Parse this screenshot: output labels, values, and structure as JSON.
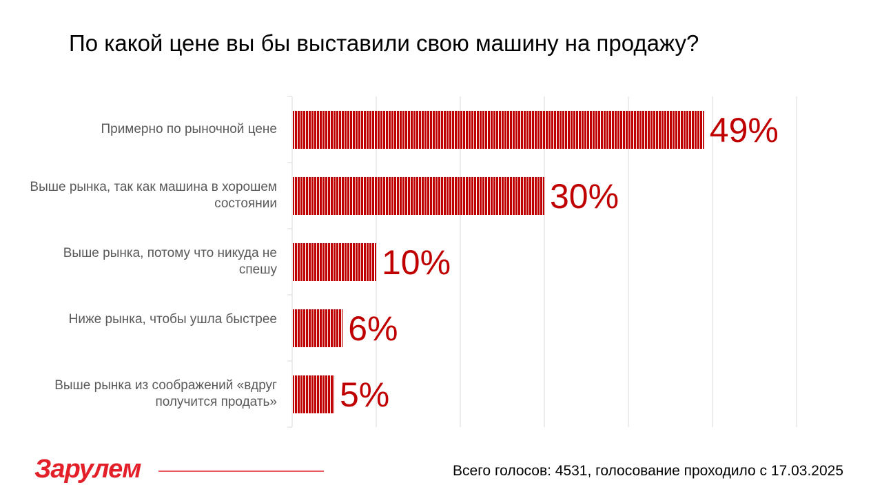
{
  "chart_data": {
    "type": "bar",
    "orientation": "horizontal",
    "title": "По какой цене вы бы выставили свою машину на продажу?",
    "categories": [
      "Примерно по рыночной цене",
      "Выше рынка, так как машина в хорошем состоянии",
      "Выше рынка, потому что никуда не спешу",
      "Ниже рынка, чтобы ушла быстрее",
      "Выше рынка из соображений «вдруг получится продать»"
    ],
    "values": [
      49,
      30,
      10,
      6,
      5
    ],
    "labels": [
      "49%",
      "30%",
      "10%",
      "6%",
      "5%"
    ],
    "xlim": [
      0,
      60
    ],
    "grid": true,
    "color": "#c00000"
  },
  "footer": {
    "logo": "За рулем",
    "text": "Всего голосов: 4531, голосование проходило с 17.03.2025"
  }
}
